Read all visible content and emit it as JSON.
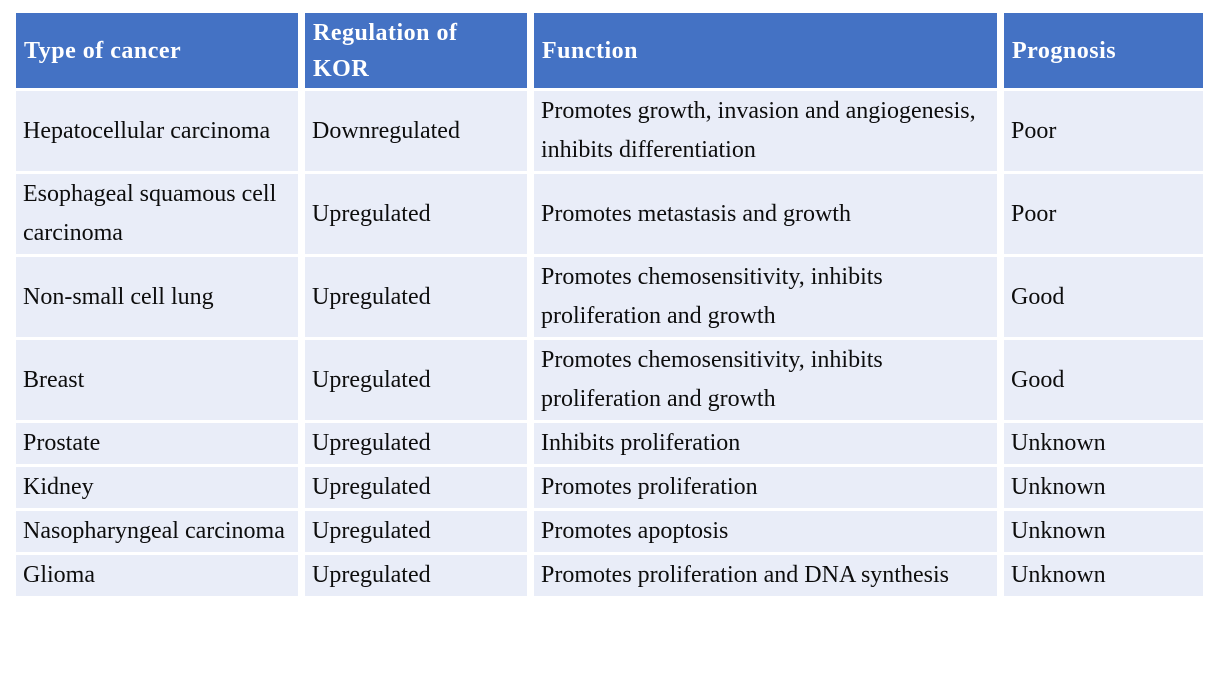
{
  "colors": {
    "header_bg": "#4472C4",
    "header_text": "#FFFFFF",
    "row_bg": "#E9EDF8",
    "body_text": "#0D0D0D",
    "page_bg": "#FFFFFF"
  },
  "table": {
    "columns": [
      "Type of cancer",
      "Regulation of KOR",
      "Function",
      "Prognosis"
    ],
    "rows": [
      {
        "type": "Hepatocellular carcinoma",
        "regulation": "Downregulated",
        "function": "Promotes growth, invasion and angiogenesis, inhibits differentiation",
        "prognosis": "Poor"
      },
      {
        "type": "Esophageal squamous cell carcinoma",
        "regulation": "Upregulated",
        "function": "Promotes metastasis and growth",
        "prognosis": "Poor"
      },
      {
        "type": "Non-small cell lung",
        "regulation": "Upregulated",
        "function": "Promotes chemosensitivity, inhibits proliferation and growth",
        "prognosis": "Good"
      },
      {
        "type": "Breast",
        "regulation": "Upregulated",
        "function": "Promotes chemosensitivity, inhibits proliferation and growth",
        "prognosis": "Good"
      },
      {
        "type": "Prostate",
        "regulation": "Upregulated",
        "function": "Inhibits proliferation",
        "prognosis": "Unknown"
      },
      {
        "type": "Kidney",
        "regulation": "Upregulated",
        "function": "Promotes proliferation",
        "prognosis": "Unknown"
      },
      {
        "type": "Nasopharyngeal carcinoma",
        "regulation": "Upregulated",
        "function": "Promotes apoptosis",
        "prognosis": "Unknown"
      },
      {
        "type": "Glioma",
        "regulation": "Upregulated",
        "function": "Promotes proliferation and DNA synthesis",
        "prognosis": "Unknown"
      }
    ]
  }
}
